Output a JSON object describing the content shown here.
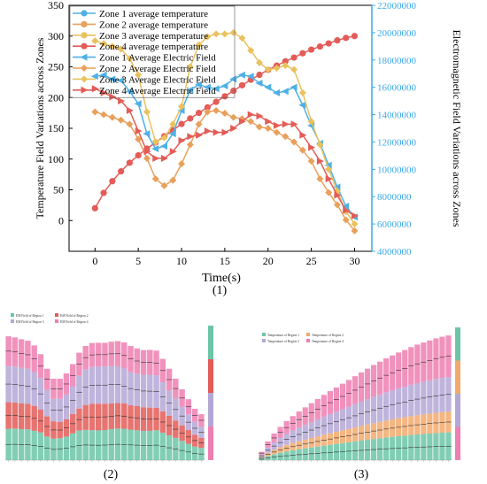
{
  "panels": {
    "p1_label": "(1)",
    "p2_label": "(2)",
    "p3_label": "(3)"
  },
  "colors": {
    "blue": "#4FB0E6",
    "orange": "#E8A15C",
    "gold": "#E9C25E",
    "red": "#E35C57",
    "ef_axis": "#3CAAE6",
    "teal": "#6CC5A8",
    "lavender": "#B4A7D6",
    "pink": "#EE7FB2",
    "sand": "#F2A96C"
  },
  "chart_data": [
    {
      "id": "main",
      "type": "line",
      "xlabel": "Time(s)",
      "ylabel": "Temperature Field Variations across Zones",
      "y2label": "Electromagnetic Field Variations across Zones",
      "xlim": [
        -3,
        32
      ],
      "ylim": [
        -50,
        350
      ],
      "y2lim": [
        4000000,
        22000000
      ],
      "xticks": [
        0,
        5,
        10,
        15,
        20,
        25,
        30
      ],
      "yticks": [
        0,
        50,
        100,
        150,
        200,
        250,
        300,
        350
      ],
      "y2ticks": [
        4000000,
        6000000,
        8000000,
        10000000,
        12000000,
        14000000,
        16000000,
        18000000,
        20000000,
        22000000
      ],
      "legend_position": "top-left",
      "x": [
        0,
        1,
        2,
        3,
        4,
        5,
        6,
        7,
        8,
        9,
        10,
        11,
        12,
        13,
        14,
        15,
        16,
        17,
        18,
        19,
        20,
        21,
        22,
        23,
        24,
        25,
        26,
        27,
        28,
        29,
        30
      ],
      "series": [
        {
          "name": "Zone 1 average temperature",
          "axis": "left",
          "marker": "circle",
          "color": "blue",
          "values": [
            null,
            null,
            null,
            null,
            null,
            null,
            null,
            null,
            null,
            null,
            null,
            null,
            null,
            null,
            null,
            null,
            null,
            null,
            null,
            null,
            null,
            null,
            null,
            null,
            null,
            null,
            null,
            null,
            null,
            null,
            null
          ]
        },
        {
          "name": "Zone 2 average temperature",
          "axis": "left",
          "marker": "circle",
          "color": "orange",
          "values": [
            null,
            null,
            null,
            null,
            null,
            null,
            null,
            null,
            null,
            null,
            null,
            null,
            null,
            null,
            null,
            null,
            null,
            null,
            null,
            null,
            null,
            null,
            null,
            null,
            null,
            null,
            null,
            null,
            null,
            null,
            null
          ]
        },
        {
          "name": "Zone 3 average temperature",
          "axis": "left",
          "marker": "circle",
          "color": "gold",
          "values": [
            null,
            null,
            null,
            null,
            null,
            null,
            null,
            null,
            null,
            null,
            null,
            null,
            null,
            null,
            null,
            null,
            null,
            null,
            null,
            null,
            null,
            null,
            null,
            null,
            null,
            null,
            null,
            null,
            null,
            null,
            null
          ]
        },
        {
          "name": "Zone 4 average temperature",
          "axis": "left",
          "marker": "circle",
          "color": "red",
          "values": [
            20,
            45,
            64,
            80,
            94,
            106,
            117,
            127,
            137,
            147,
            157,
            166,
            175,
            184,
            193,
            202,
            211,
            220,
            229,
            237,
            245,
            252,
            259,
            265,
            272,
            278,
            283,
            288,
            293,
            297,
            300
          ]
        },
        {
          "name": "Zone 1 Average Electric Field",
          "axis": "right",
          "marker": "tri-left",
          "color": "blue",
          "values": [
            16800000,
            16900000,
            16600000,
            16500000,
            15700000,
            14800000,
            12600000,
            11500000,
            11700000,
            12600000,
            14300000,
            15800000,
            16200000,
            16000000,
            15900000,
            16100000,
            16600000,
            16900000,
            16800000,
            16300000,
            16000000,
            15600000,
            15700000,
            16000000,
            14700000,
            13200000,
            11900000,
            10300000,
            8700000,
            7300000,
            6500000
          ]
        },
        {
          "name": "Zone 2 Average Electric Field",
          "axis": "right",
          "marker": "diamond",
          "color": "orange",
          "values": [
            14200000,
            14000000,
            13800000,
            13600000,
            13300000,
            12200000,
            10800000,
            9300000,
            8800000,
            9200000,
            10400000,
            11800000,
            13300000,
            14200000,
            14300000,
            14100000,
            13800000,
            13700000,
            13500000,
            13100000,
            13000000,
            12700000,
            12400000,
            12000000,
            11400000,
            10600000,
            9300000,
            8300000,
            7400000,
            6300000,
            5500000
          ]
        },
        {
          "name": "Zone 3 Average Electric Field",
          "axis": "right",
          "marker": "diamond",
          "color": "gold",
          "values": [
            19400000,
            19200000,
            19000000,
            18800000,
            18100000,
            16900000,
            14200000,
            12000000,
            12300000,
            13300000,
            14600000,
            17500000,
            19100000,
            19700000,
            19900000,
            19900000,
            20000000,
            19600000,
            18700000,
            17800000,
            17300000,
            17400000,
            17600000,
            17300000,
            15600000,
            13500000,
            11800000,
            10000000,
            8400000,
            6900000,
            6000000
          ]
        },
        {
          "name": "Zone 4 Average Electric Field",
          "axis": "right",
          "marker": "tri-right",
          "color": "red",
          "values": [
            15900000,
            15600000,
            15300000,
            15000000,
            14300000,
            12800000,
            11300000,
            10800000,
            10800000,
            11300000,
            12100000,
            12400000,
            12500000,
            12800000,
            12700000,
            12700000,
            13000000,
            13500000,
            14000000,
            13900000,
            13500000,
            13200000,
            13300000,
            13300000,
            12500000,
            11600000,
            10600000,
            9300000,
            8100000,
            7000000,
            6600000
          ]
        }
      ]
    },
    {
      "id": "em-stack",
      "type": "bar",
      "stacked": true,
      "legend": [
        "EM Field of Region 1",
        "EM Field of Region 2",
        "EM Field of Region 3",
        "EM Field of Region 4"
      ],
      "legend_position": "top-left",
      "series": [
        {
          "name": "EM Field of Region 1",
          "color": "teal"
        },
        {
          "name": "EM Field of Region 2",
          "color": "red"
        },
        {
          "name": "EM Field of Region 3",
          "color": "lavender"
        },
        {
          "name": "EM Field of Region 4",
          "color": "pink"
        }
      ]
    },
    {
      "id": "temp-stack",
      "type": "bar",
      "stacked": true,
      "legend": [
        "Temperature of Region 1",
        "Temperature of Region 2",
        "Temperature of Region 3",
        "Temperature of Region 4"
      ],
      "legend_position": "top-left",
      "series": [
        {
          "name": "Temperature of Region 1",
          "color": "teal"
        },
        {
          "name": "Temperature of Region 2",
          "color": "sand"
        },
        {
          "name": "Temperature of Region 3",
          "color": "lavender"
        },
        {
          "name": "Temperature of Region 4",
          "color": "pink"
        }
      ]
    }
  ]
}
